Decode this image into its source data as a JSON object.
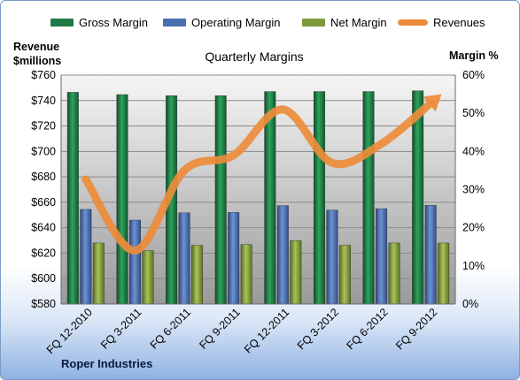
{
  "chart_data": {
    "type": "bar",
    "title": "Quarterly Margins",
    "categories": [
      "FQ 12-2010",
      "FQ 3-2011",
      "FQ 6-2011",
      "FQ 9-2011",
      "FQ 12-2011",
      "FQ 3-2012",
      "FQ 6-2012",
      "FQ 9-2012"
    ],
    "series": [
      {
        "name": "Gross Margin",
        "axis": "right",
        "values": [
          55.5,
          54.9,
          54.6,
          54.6,
          55.7,
          55.7,
          55.7,
          55.9
        ],
        "color": "#1f7a45"
      },
      {
        "name": "Operating Margin",
        "axis": "right",
        "values": [
          24.8,
          22.0,
          23.9,
          24.0,
          25.8,
          24.6,
          25.0,
          25.9
        ],
        "color": "#4a6fb0"
      },
      {
        "name": "Net Margin",
        "axis": "right",
        "values": [
          16.0,
          14.0,
          15.4,
          15.6,
          16.6,
          15.4,
          16.0,
          16.0
        ],
        "color": "#7e9a3c"
      },
      {
        "name": "Revenues",
        "axis": "left",
        "type": "line",
        "values": [
          678,
          622,
          685,
          697,
          733,
          691,
          706,
          738
        ],
        "color": "#ed8c3b"
      }
    ],
    "ylabel_left": "Revenue $millions",
    "ylabel_left_lines": [
      "Revenue",
      "$millions"
    ],
    "ylabel_right": "Margin %",
    "ylim_left": [
      580,
      760
    ],
    "yticks_left": [
      "$580",
      "$600",
      "$620",
      "$640",
      "$660",
      "$680",
      "$700",
      "$720",
      "$740",
      "$760"
    ],
    "ylim_right": [
      0,
      60
    ],
    "yticks_right": [
      "0%",
      "10%",
      "20%",
      "30%",
      "40%",
      "50%",
      "60%"
    ],
    "grid": true,
    "legend_position": "top"
  },
  "footer": {
    "company": "Roper Industries"
  }
}
